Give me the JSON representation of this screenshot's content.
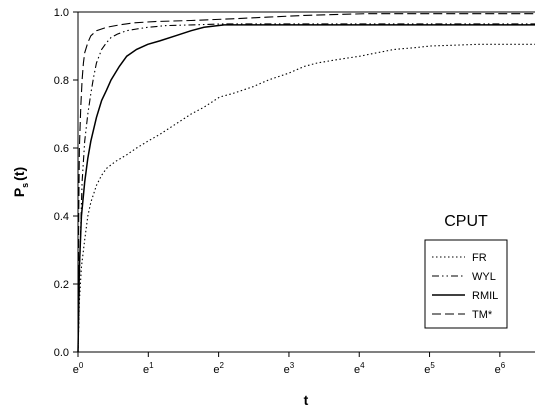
{
  "chart_data": {
    "type": "line",
    "title": "",
    "panel_label": "CPUT",
    "xlabel": "t",
    "ylabel_main": "P",
    "ylabel_sub": "s",
    "ylabel_suffix": "(t)",
    "x_scale": "log (base e)",
    "xlim": [
      1,
      665
    ],
    "ylim": [
      0.0,
      1.0
    ],
    "x_ticks": [
      {
        "value": 1,
        "base": "e",
        "exp": "0"
      },
      {
        "value": 2.718,
        "base": "e",
        "exp": "1"
      },
      {
        "value": 7.389,
        "base": "e",
        "exp": "2"
      },
      {
        "value": 20.09,
        "base": "e",
        "exp": "3"
      },
      {
        "value": 54.6,
        "base": "e",
        "exp": "4"
      },
      {
        "value": 148.4,
        "base": "e",
        "exp": "5"
      },
      {
        "value": 403.4,
        "base": "e",
        "exp": "6"
      }
    ],
    "y_ticks": [
      "0.0",
      "0.2",
      "0.4",
      "0.6",
      "0.8",
      "1.0"
    ],
    "grid": false,
    "legend_position": "bottom-right",
    "series": [
      {
        "name": "FR",
        "dash": "1.5,2.5",
        "width": 1.1,
        "x": [
          1,
          1.02,
          1.05,
          1.1,
          1.15,
          1.2,
          1.3,
          1.4,
          1.5,
          1.7,
          2.0,
          2.3,
          2.7,
          3.2,
          4.0,
          5.0,
          6.0,
          7.5,
          9,
          12,
          15,
          20,
          25,
          30,
          40,
          55,
          70,
          90,
          120,
          150,
          200,
          300,
          665
        ],
        "y": [
          0.0,
          0.15,
          0.25,
          0.33,
          0.4,
          0.44,
          0.49,
          0.52,
          0.54,
          0.56,
          0.58,
          0.6,
          0.62,
          0.64,
          0.67,
          0.7,
          0.72,
          0.75,
          0.76,
          0.78,
          0.8,
          0.82,
          0.84,
          0.85,
          0.86,
          0.87,
          0.88,
          0.89,
          0.895,
          0.9,
          0.902,
          0.905,
          0.905
        ]
      },
      {
        "name": "WYL",
        "dash": "7,3,1.5,3,1.5,3",
        "width": 1.1,
        "x": [
          1,
          1.03,
          1.06,
          1.1,
          1.15,
          1.2,
          1.25,
          1.3,
          1.4,
          1.5,
          1.6,
          1.75,
          2.0,
          2.3,
          2.7,
          3.5,
          5,
          8,
          665
        ],
        "y": [
          0.0,
          0.3,
          0.5,
          0.62,
          0.7,
          0.76,
          0.81,
          0.85,
          0.89,
          0.91,
          0.925,
          0.935,
          0.945,
          0.95,
          0.955,
          0.96,
          0.962,
          0.965,
          0.965
        ]
      },
      {
        "name": "RMIL",
        "dash": "none",
        "width": 1.5,
        "x": [
          1,
          1.02,
          1.05,
          1.1,
          1.15,
          1.2,
          1.3,
          1.4,
          1.5,
          1.6,
          1.8,
          2.0,
          2.3,
          2.7,
          3.2,
          4.0,
          5.0,
          6.0,
          8,
          665
        ],
        "y": [
          0.0,
          0.25,
          0.4,
          0.5,
          0.57,
          0.62,
          0.69,
          0.74,
          0.77,
          0.8,
          0.84,
          0.87,
          0.89,
          0.905,
          0.915,
          0.93,
          0.945,
          0.955,
          0.962,
          0.962
        ]
      },
      {
        "name": "TM*",
        "dash": "9,4",
        "width": 1.1,
        "x": [
          1,
          1.01,
          1.02,
          1.04,
          1.06,
          1.08,
          1.1,
          1.15,
          1.2,
          1.3,
          1.5,
          1.8,
          2.2,
          3.0,
          5.0,
          9,
          15,
          25,
          60,
          665
        ],
        "y": [
          0.0,
          0.4,
          0.6,
          0.72,
          0.8,
          0.85,
          0.88,
          0.91,
          0.93,
          0.945,
          0.955,
          0.962,
          0.968,
          0.972,
          0.975,
          0.98,
          0.985,
          0.99,
          0.995,
          0.995
        ]
      }
    ]
  }
}
